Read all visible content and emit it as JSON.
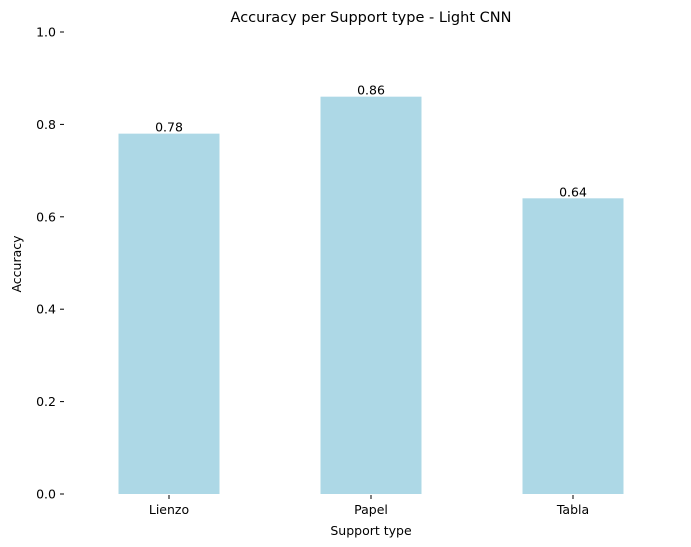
{
  "chart_data": {
    "type": "bar",
    "title": "Accuracy per Support type - Light CNN",
    "xlabel": "Support type",
    "ylabel": "Accuracy",
    "categories": [
      "Lienzo",
      "Papel",
      "Tabla"
    ],
    "values": [
      0.78,
      0.86,
      0.64
    ],
    "value_labels": [
      "0.78",
      "0.86",
      "0.64"
    ],
    "ylim": [
      0,
      1
    ],
    "yticks": [
      0.0,
      0.2,
      0.4,
      0.6,
      0.8,
      1.0
    ],
    "ytick_labels": [
      "0.0",
      "0.2",
      "0.4",
      "0.6",
      "0.8",
      "1.0"
    ],
    "bar_color": "#add8e6",
    "grid": false,
    "legend": "none"
  }
}
